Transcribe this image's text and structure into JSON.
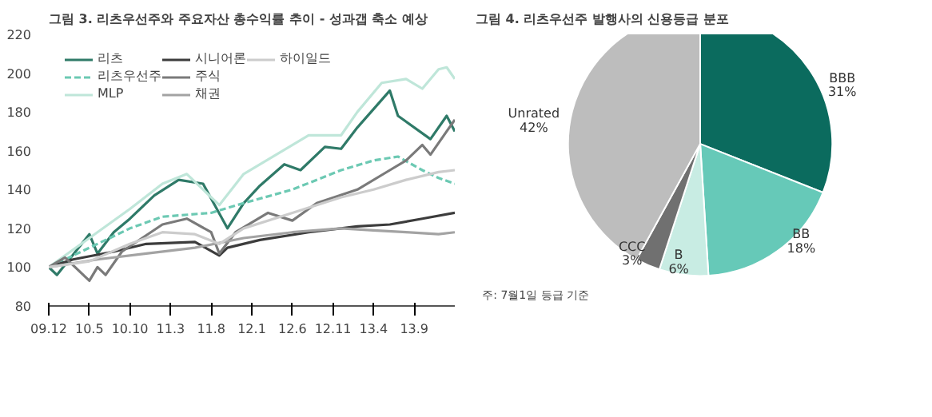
{
  "chart_data": [
    {
      "type": "line",
      "title": "그림 3. 리츠우선주와 주요자산 총수익률 추이 - 성과갭 축소 예상",
      "xlim": [
        "2009-12",
        "2014-02"
      ],
      "xticks": [
        {
          "value": "2009-12",
          "label": "09.12"
        },
        {
          "value": "2010-05",
          "label": "10.5"
        },
        {
          "value": "2010-10",
          "label": "10.10"
        },
        {
          "value": "2011-03",
          "label": "11.3"
        },
        {
          "value": "2011-08",
          "label": "11.8"
        },
        {
          "value": "2012-01",
          "label": "12.1"
        },
        {
          "value": "2012-06",
          "label": "12.6"
        },
        {
          "value": "2012-11",
          "label": "12.11"
        },
        {
          "value": "2013-04",
          "label": "13.4"
        },
        {
          "value": "2013-09",
          "label": "13.9"
        }
      ],
      "ylim": [
        80,
        220
      ],
      "yticks": [
        80,
        100,
        120,
        140,
        160,
        180,
        200,
        220
      ],
      "grid": false,
      "legend": "top left",
      "series": [
        {
          "name": "리츠",
          "color": "#2f7a68",
          "line_style": "solid",
          "x": [
            "2009-12",
            "2010-01",
            "2010-05",
            "2010-06",
            "2010-08",
            "2010-10",
            "2011-01",
            "2011-04",
            "2011-07",
            "2011-10",
            "2011-12",
            "2012-02",
            "2012-05",
            "2012-07",
            "2012-10",
            "2012-12",
            "2013-02",
            "2013-06",
            "2013-07",
            "2013-08",
            "2013-11",
            "2014-01",
            "2014-02"
          ],
          "values": [
            100,
            96,
            117,
            107,
            118,
            125,
            137,
            145,
            143,
            120,
            133,
            142,
            153,
            150,
            162,
            161,
            172,
            191,
            178,
            175,
            166,
            178,
            170
          ]
        },
        {
          "name": "리츠우선주",
          "color": "#6cc9b3",
          "line_style": "dashed",
          "x": [
            "2009-12",
            "2010-05",
            "2010-10",
            "2011-02",
            "2011-08",
            "2011-12",
            "2012-06",
            "2012-12",
            "2013-04",
            "2013-07",
            "2013-10",
            "2013-12",
            "2014-02"
          ],
          "values": [
            100,
            110,
            120,
            126,
            128,
            133,
            140,
            150,
            155,
            157,
            150,
            146,
            143
          ]
        },
        {
          "name": "MLP",
          "color": "#bfe6d9",
          "line_style": "solid",
          "x": [
            "2009-12",
            "2010-05",
            "2010-10",
            "2011-02",
            "2011-05",
            "2011-09",
            "2011-12",
            "2012-04",
            "2012-08",
            "2012-12",
            "2013-02",
            "2013-05",
            "2013-08",
            "2013-10",
            "2013-12",
            "2014-01",
            "2014-02"
          ],
          "values": [
            100,
            115,
            130,
            143,
            148,
            132,
            148,
            158,
            168,
            168,
            180,
            195,
            197,
            192,
            202,
            203,
            197
          ]
        },
        {
          "name": "시니어론",
          "color": "#3c3c3c",
          "line_style": "solid",
          "x": [
            "2009-12",
            "2010-03",
            "2010-08",
            "2010-12",
            "2011-06",
            "2011-09",
            "2011-10",
            "2012-02",
            "2012-08",
            "2013-02",
            "2013-06",
            "2013-10",
            "2014-02"
          ],
          "values": [
            100,
            104,
            108,
            112,
            113,
            106,
            110,
            114,
            118,
            121,
            122,
            125,
            128
          ]
        },
        {
          "name": "주식",
          "color": "#7a7a7a",
          "line_style": "solid",
          "x": [
            "2009-12",
            "2010-02",
            "2010-05",
            "2010-06",
            "2010-07",
            "2010-09",
            "2011-02",
            "2011-05",
            "2011-08",
            "2011-09",
            "2011-11",
            "2012-03",
            "2012-06",
            "2012-09",
            "2013-02",
            "2013-06",
            "2013-08",
            "2013-10",
            "2013-11",
            "2014-01",
            "2014-02"
          ],
          "values": [
            100,
            105,
            93,
            100,
            96,
            108,
            122,
            125,
            118,
            107,
            118,
            128,
            124,
            133,
            140,
            150,
            155,
            163,
            158,
            170,
            176
          ]
        },
        {
          "name": "채권",
          "color": "#a3a3a3",
          "line_style": "solid",
          "x": [
            "2009-12",
            "2010-06",
            "2010-12",
            "2011-06",
            "2011-12",
            "2012-06",
            "2012-12",
            "2013-04",
            "2013-08",
            "2013-12",
            "2014-02"
          ],
          "values": [
            100,
            104,
            107,
            110,
            115,
            118,
            120,
            119,
            118,
            117,
            118
          ]
        },
        {
          "name": "하이일드",
          "color": "#cccccc",
          "line_style": "solid",
          "x": [
            "2009-12",
            "2010-05",
            "2010-10",
            "2011-02",
            "2011-06",
            "2011-09",
            "2011-12",
            "2012-06",
            "2012-12",
            "2013-04",
            "2013-08",
            "2013-12",
            "2014-02"
          ],
          "values": [
            100,
            103,
            112,
            118,
            117,
            112,
            120,
            128,
            136,
            140,
            145,
            149,
            150
          ]
        }
      ]
    },
    {
      "type": "pie",
      "title": "그림 4. 리츠우선주 발행사의 신용등급 분포",
      "categories": [
        "BBB",
        "BB",
        "B",
        "CCC",
        "Unrated"
      ],
      "values": [
        31,
        18,
        6,
        3,
        42
      ],
      "value_labels": [
        "31%",
        "18%",
        "6%",
        "3%",
        "42%"
      ],
      "colors": [
        "#0b6b5e",
        "#66c9b8",
        "#c8ece3",
        "#707070",
        "#bdbdbd"
      ],
      "annotations": [
        "주: 7월1일 등급 기준"
      ]
    }
  ]
}
